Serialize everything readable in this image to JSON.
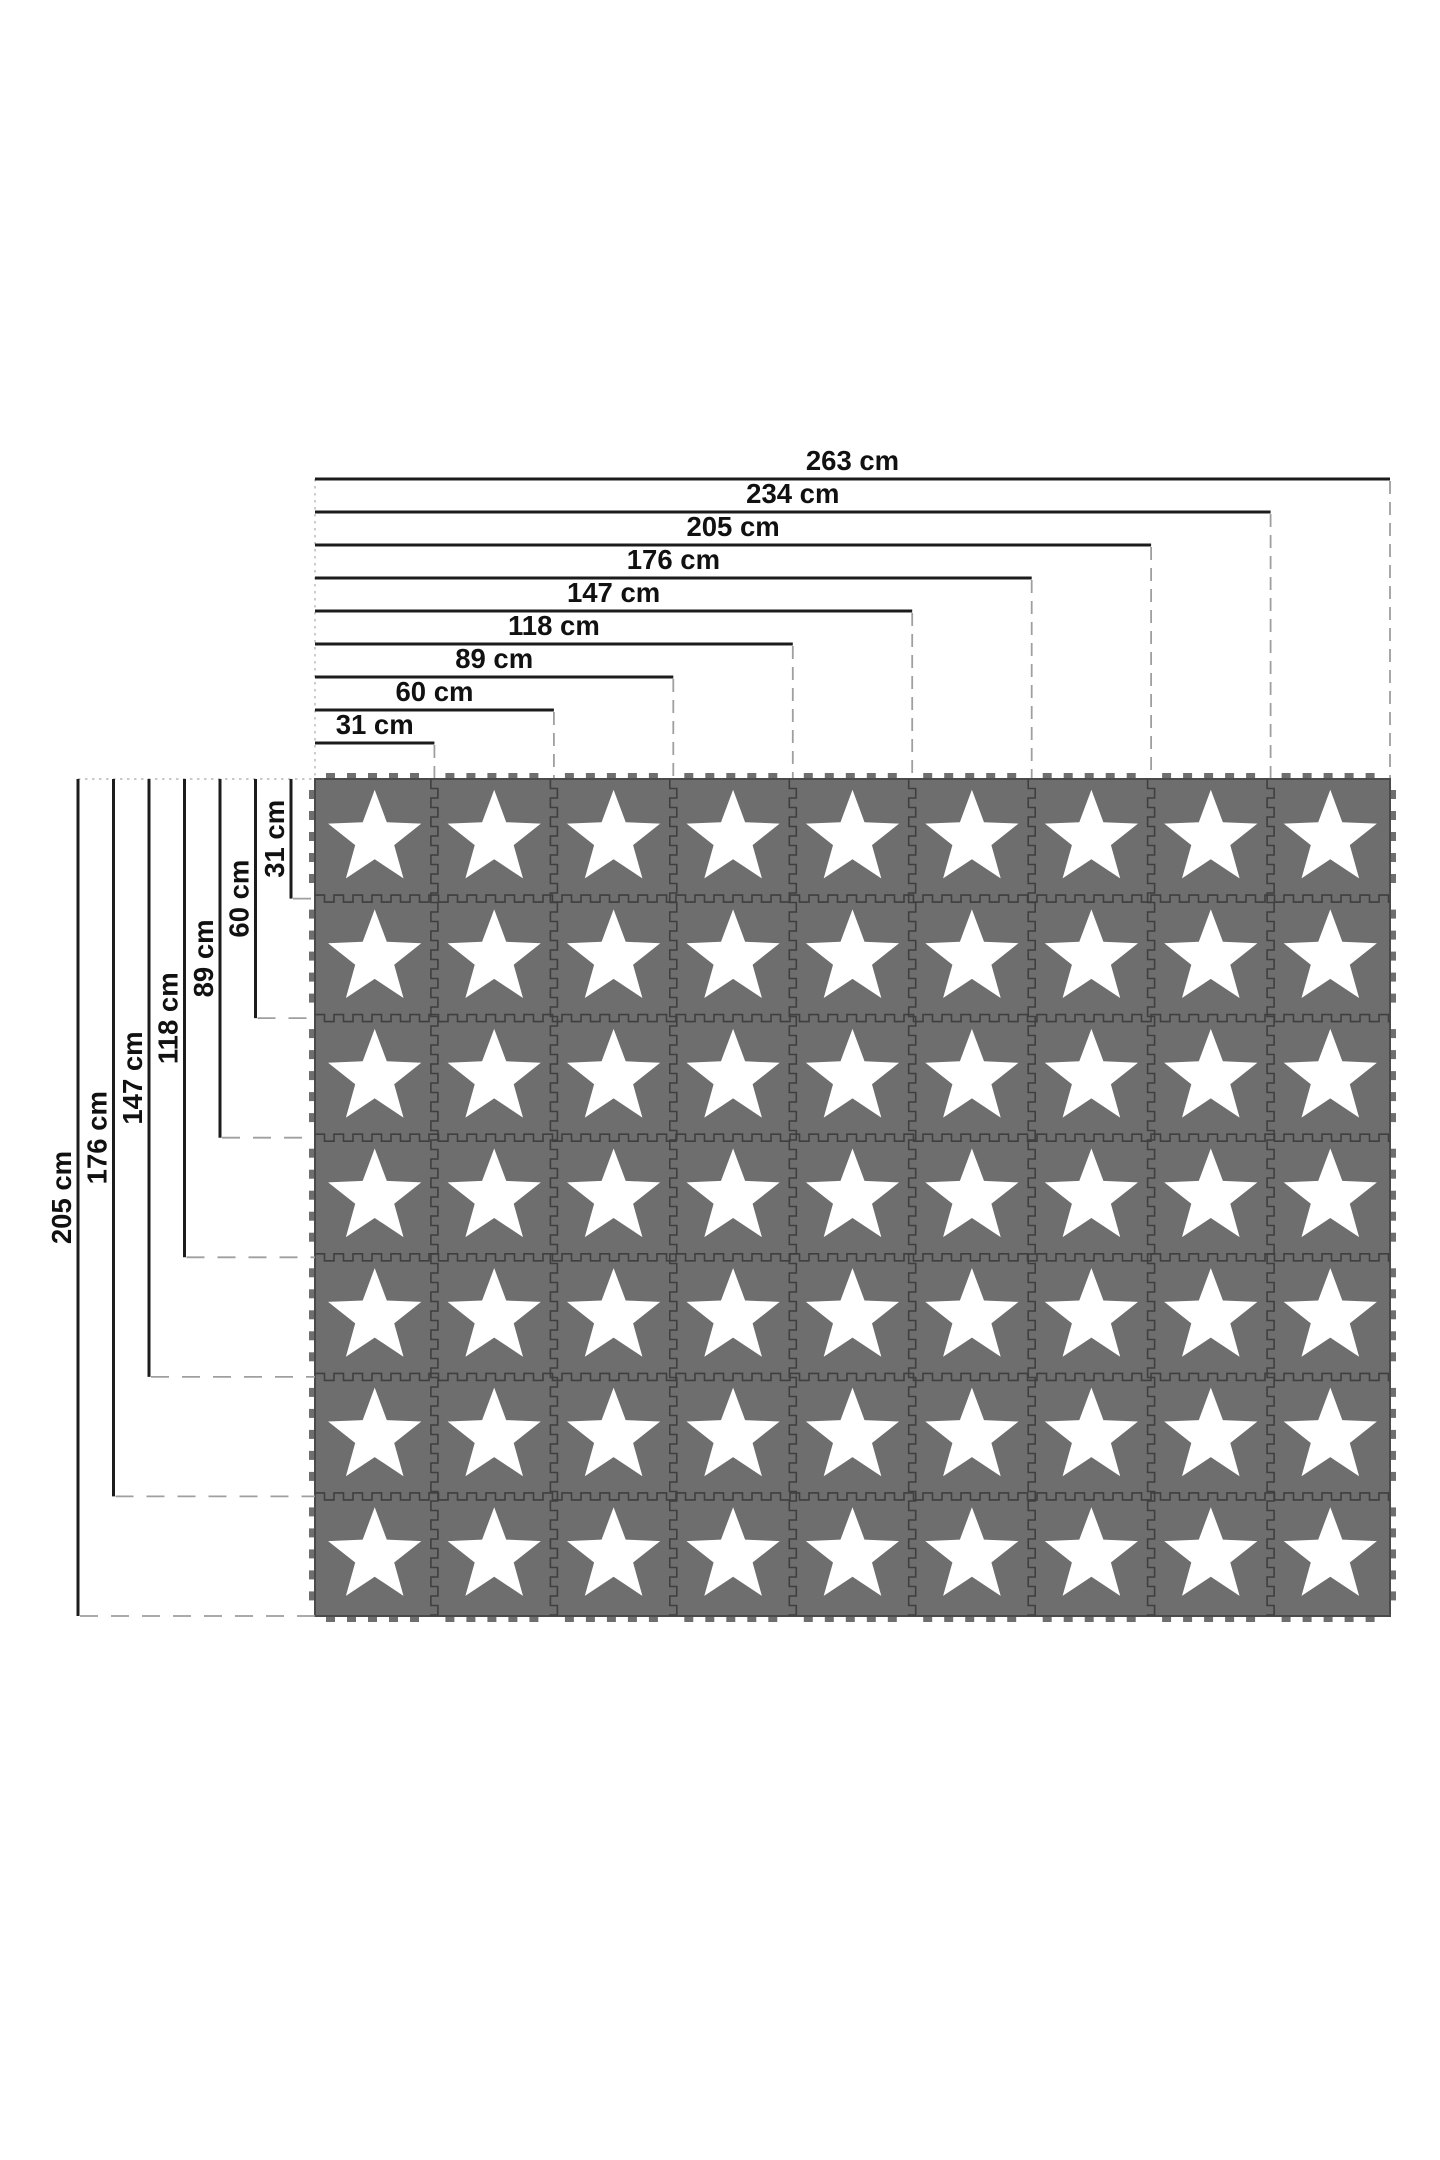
{
  "diagram": {
    "description": "Size chart of an interlocking foam play mat made of gray puzzle tiles with white stars",
    "unit": "cm",
    "mat": {
      "rows": 7,
      "cols": 9,
      "tile_count": 63,
      "tile_style": "gray interlocking foam tile with centered white star"
    },
    "top_dimensions": [
      {
        "label": "263 cm",
        "value_cm": 263,
        "tiles": 9
      },
      {
        "label": "234 cm",
        "value_cm": 234,
        "tiles": 8
      },
      {
        "label": "205 cm",
        "value_cm": 205,
        "tiles": 7
      },
      {
        "label": "176 cm",
        "value_cm": 176,
        "tiles": 6
      },
      {
        "label": "147 cm",
        "value_cm": 147,
        "tiles": 5
      },
      {
        "label": "118 cm",
        "value_cm": 118,
        "tiles": 4
      },
      {
        "label": "89 cm",
        "value_cm": 89,
        "tiles": 3
      },
      {
        "label": "60 cm",
        "value_cm": 60,
        "tiles": 2
      },
      {
        "label": "31 cm",
        "value_cm": 31,
        "tiles": 1
      }
    ],
    "left_dimensions": [
      {
        "label": "205 cm",
        "value_cm": 205,
        "tiles": 7
      },
      {
        "label": "176 cm",
        "value_cm": 176,
        "tiles": 6
      },
      {
        "label": "147 cm",
        "value_cm": 147,
        "tiles": 5
      },
      {
        "label": "118 cm",
        "value_cm": 118,
        "tiles": 4
      },
      {
        "label": "89 cm",
        "value_cm": 89,
        "tiles": 3
      },
      {
        "label": "60 cm",
        "value_cm": 60,
        "tiles": 2
      },
      {
        "label": "31 cm",
        "value_cm": 31,
        "tiles": 1
      }
    ],
    "colors": {
      "background": "#ffffff",
      "tile_gray": "#6e6e6e",
      "tile_seam": "#3f3f3f",
      "tile_outline": "#4a4a4a",
      "star": "#ffffff",
      "dimension_line": "#1c1c1c",
      "connector_dash": "#9f9f9f",
      "baseline_dot": "#b8b8b8",
      "label_text": "#111111"
    }
  }
}
